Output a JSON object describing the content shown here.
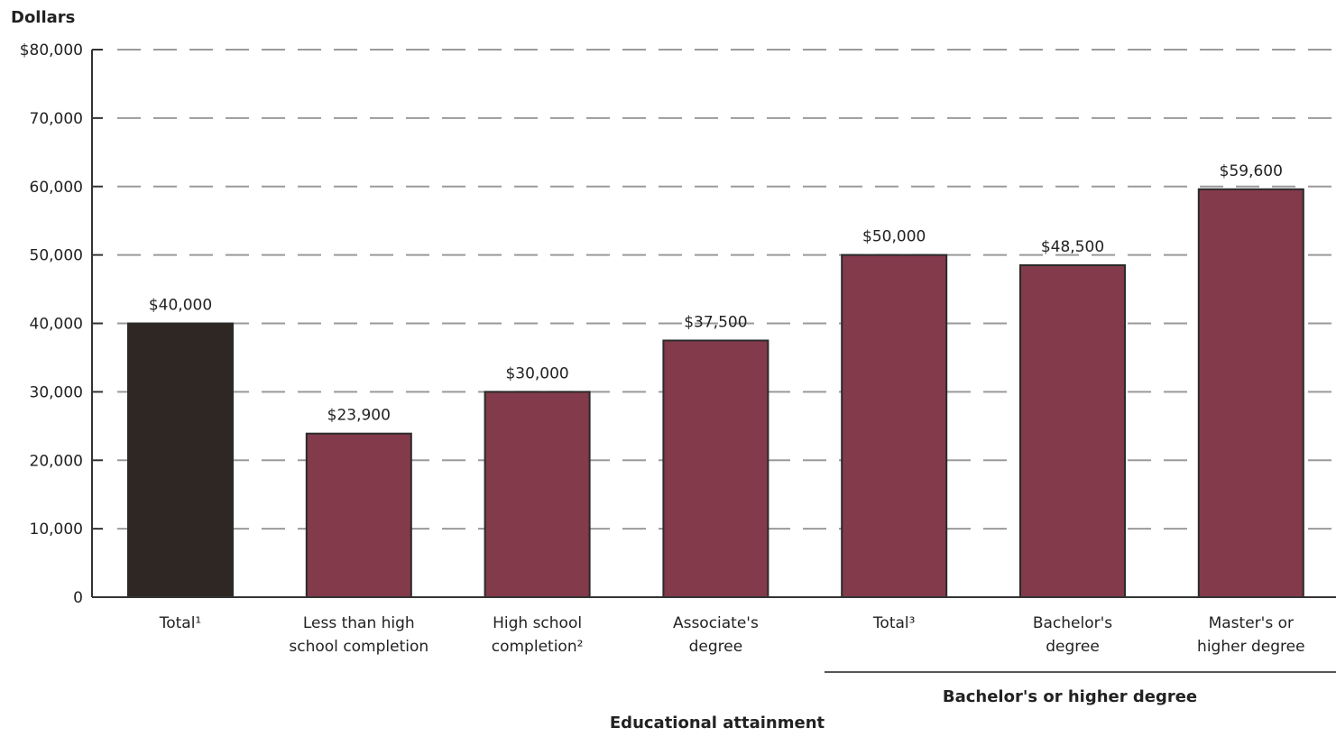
{
  "chart_data": {
    "type": "bar",
    "ylabel": "Dollars",
    "xlabel": "Educational attainment",
    "ylim": [
      0,
      80000
    ],
    "yticks": [
      0,
      10000,
      20000,
      30000,
      40000,
      50000,
      60000,
      70000,
      80000
    ],
    "ytick_labels": [
      "0",
      "10,000",
      "20,000",
      "30,000",
      "40,000",
      "50,000",
      "60,000",
      "70,000",
      "$80,000"
    ],
    "grid": "dashed horizontal",
    "categories": [
      [
        "Total¹"
      ],
      [
        "Less than high",
        "school completion"
      ],
      [
        "High school",
        "completion²"
      ],
      [
        "Associate's",
        "degree"
      ],
      [
        "Total³"
      ],
      [
        "Bachelor's",
        "degree"
      ],
      [
        "Master's or",
        "higher degree"
      ]
    ],
    "values": [
      40000,
      23900,
      30000,
      37500,
      50000,
      48500,
      59600
    ],
    "value_labels": [
      "$40,000",
      "$23,900",
      "$30,000",
      "$37,500",
      "$50,000",
      "$48,500",
      "$59,600"
    ],
    "bar_colors": [
      "#2e2724",
      "#833a4b",
      "#833a4b",
      "#833a4b",
      "#833a4b",
      "#833a4b",
      "#833a4b"
    ],
    "group": {
      "label": "Bachelor's or higher degree",
      "categories": [
        4,
        5,
        6
      ]
    }
  }
}
